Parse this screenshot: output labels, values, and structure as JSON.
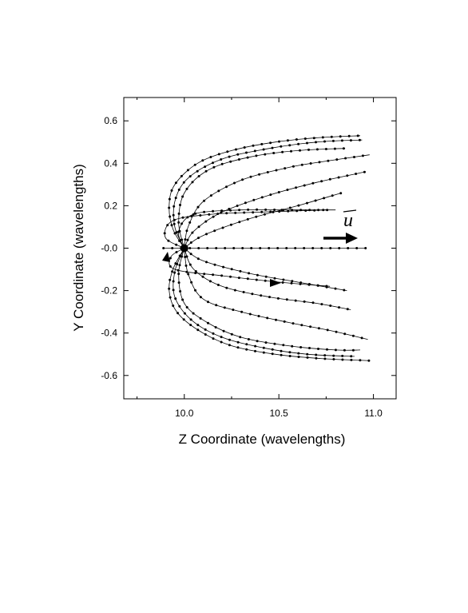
{
  "chart_data": {
    "type": "line",
    "title": "",
    "xlabel": "Z Coordinate (wavelengths)",
    "ylabel": "Y Coordinate (wavelengths)",
    "xlim": [
      9.68,
      11.12
    ],
    "ylim": [
      -0.71,
      0.71
    ],
    "x_ticks": [
      10.0,
      10.5,
      11.0
    ],
    "x_tick_labels": [
      "10.0",
      "10.5",
      "11.0"
    ],
    "y_ticks": [
      0.6,
      0.4,
      0.2,
      0.0,
      -0.2,
      -0.4,
      -0.6
    ],
    "y_tick_labels": [
      "0.6",
      "0.4",
      "0.2",
      "-0.0",
      "-0.2",
      "-0.4",
      "-0.6"
    ],
    "grid": false,
    "annotation": {
      "label": "u",
      "description": "velocity vector arrow pointing +Z"
    },
    "series": [
      {
        "x": [
          10.0,
          9.94,
          9.92,
          9.95,
          10.07,
          10.25,
          10.48,
          10.7,
          10.93
        ],
        "y": [
          0.0,
          0.09,
          0.2,
          0.3,
          0.4,
          0.46,
          0.5,
          0.52,
          0.53
        ]
      },
      {
        "x": [
          10.0,
          9.95,
          9.95,
          10.02,
          10.2,
          10.45,
          10.7,
          10.94
        ],
        "y": [
          0.0,
          0.1,
          0.22,
          0.33,
          0.42,
          0.47,
          0.5,
          0.51
        ]
      },
      {
        "x": [
          10.0,
          9.97,
          10.0,
          10.13,
          10.35,
          10.6,
          10.85
        ],
        "y": [
          0.0,
          0.12,
          0.26,
          0.37,
          0.43,
          0.46,
          0.47
        ]
      },
      {
        "x": [
          10.0,
          10.02,
          10.1,
          10.3,
          10.55,
          10.75,
          10.98
        ],
        "y": [
          0.0,
          0.1,
          0.22,
          0.32,
          0.38,
          0.41,
          0.44
        ]
      },
      {
        "x": [
          10.0,
          10.05,
          10.2,
          10.45,
          10.7,
          10.96
        ],
        "y": [
          0.0,
          0.08,
          0.17,
          0.25,
          0.31,
          0.36
        ]
      },
      {
        "x": [
          10.0,
          10.1,
          10.35,
          10.6,
          10.83
        ],
        "y": [
          0.0,
          0.06,
          0.14,
          0.2,
          0.26
        ]
      },
      {
        "x": [
          10.0,
          9.97,
          10.05,
          10.3,
          10.55,
          10.8
        ],
        "y": [
          0.0,
          0.08,
          0.16,
          0.18,
          0.18,
          0.18
        ]
      },
      {
        "x": [
          10.0,
          9.9,
          9.94,
          10.15,
          10.4,
          10.75
        ],
        "y": [
          0.0,
          0.05,
          0.13,
          0.16,
          0.17,
          0.18
        ]
      },
      {
        "x": [
          9.89,
          10.0,
          10.3,
          10.6,
          10.96
        ],
        "y": [
          0.0,
          0.0,
          0.0,
          0.0,
          0.0
        ]
      },
      {
        "x": [
          10.0,
          9.93,
          9.95,
          10.2,
          10.5,
          10.77
        ],
        "y": [
          0.0,
          -0.04,
          -0.1,
          -0.13,
          -0.16,
          -0.18
        ]
      },
      {
        "x": [
          10.0,
          10.1,
          10.35,
          10.6,
          10.86
        ],
        "y": [
          0.0,
          -0.06,
          -0.12,
          -0.16,
          -0.2
        ]
      },
      {
        "x": [
          10.0,
          10.05,
          10.2,
          10.45,
          10.7,
          10.88
        ],
        "y": [
          0.0,
          -0.1,
          -0.18,
          -0.23,
          -0.26,
          -0.29
        ]
      },
      {
        "x": [
          10.0,
          10.02,
          10.1,
          10.3,
          10.55,
          10.78,
          10.97
        ],
        "y": [
          0.0,
          -0.12,
          -0.24,
          -0.3,
          -0.35,
          -0.39,
          -0.43
        ]
      },
      {
        "x": [
          10.0,
          9.97,
          10.0,
          10.12,
          10.3,
          10.55,
          10.8,
          10.93
        ],
        "y": [
          0.0,
          -0.12,
          -0.26,
          -0.35,
          -0.42,
          -0.46,
          -0.48,
          -0.48
        ]
      },
      {
        "x": [
          10.0,
          9.95,
          9.95,
          10.04,
          10.2,
          10.42,
          10.65,
          10.9
        ],
        "y": [
          0.0,
          -0.11,
          -0.23,
          -0.34,
          -0.42,
          -0.47,
          -0.5,
          -0.51
        ]
      },
      {
        "x": [
          10.0,
          9.94,
          9.92,
          9.96,
          10.08,
          10.25,
          10.48,
          10.72,
          10.98
        ],
        "y": [
          0.0,
          -0.1,
          -0.2,
          -0.3,
          -0.39,
          -0.46,
          -0.5,
          -0.52,
          -0.53
        ]
      }
    ]
  }
}
